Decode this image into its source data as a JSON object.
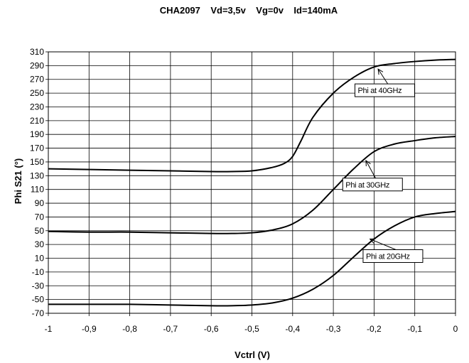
{
  "chart_data": {
    "type": "line",
    "title": "CHA2097    Vd=3,5v    Vg=0v    Id=140mA",
    "xlabel": "Vctrl (V)",
    "ylabel": "Phi S21 (°)",
    "xlim": [
      -1,
      0
    ],
    "ylim": [
      -70,
      310
    ],
    "x_ticks": [
      -1,
      -0.9,
      -0.8,
      -0.7,
      -0.6,
      -0.5,
      -0.4,
      -0.3,
      -0.2,
      -0.1,
      0
    ],
    "x_tick_labels": [
      "-1",
      "-0,9",
      "-0,8",
      "-0,7",
      "-0,6",
      "-0,5",
      "-0,4",
      "-0,3",
      "-0,2",
      "-0,1",
      "0"
    ],
    "y_ticks": [
      -70,
      -50,
      -30,
      -10,
      10,
      30,
      50,
      70,
      90,
      110,
      130,
      150,
      170,
      190,
      210,
      230,
      250,
      270,
      290,
      310
    ],
    "grid": true,
    "legend": "none",
    "series": [
      {
        "name": "Phi at 40GHz",
        "x": [
          -1,
          -0.9,
          -0.8,
          -0.7,
          -0.6,
          -0.55,
          -0.5,
          -0.45,
          -0.42,
          -0.4,
          -0.38,
          -0.35,
          -0.3,
          -0.25,
          -0.2,
          -0.15,
          -0.1,
          -0.05,
          0
        ],
        "y": [
          140,
          139,
          138,
          137,
          136,
          136,
          137,
          142,
          148,
          158,
          180,
          215,
          250,
          273,
          288,
          293,
          296,
          298,
          299
        ]
      },
      {
        "name": "Phi at 30GHz",
        "x": [
          -1,
          -0.9,
          -0.8,
          -0.7,
          -0.6,
          -0.55,
          -0.5,
          -0.45,
          -0.4,
          -0.35,
          -0.3,
          -0.25,
          -0.2,
          -0.15,
          -0.1,
          -0.05,
          0
        ],
        "y": [
          49,
          48,
          48,
          47,
          46,
          46,
          47,
          51,
          60,
          80,
          110,
          140,
          165,
          176,
          181,
          185,
          187
        ]
      },
      {
        "name": "Phi at 20GHz",
        "x": [
          -1,
          -0.9,
          -0.8,
          -0.7,
          -0.6,
          -0.55,
          -0.5,
          -0.45,
          -0.4,
          -0.35,
          -0.3,
          -0.25,
          -0.2,
          -0.15,
          -0.1,
          -0.05,
          0
        ],
        "y": [
          -57,
          -57,
          -57,
          -58,
          -59,
          -59,
          -58,
          -55,
          -48,
          -35,
          -15,
          12,
          38,
          57,
          70,
          75,
          78
        ]
      }
    ],
    "annotations": [
      {
        "text": "Phi at 40GHz",
        "series": 0,
        "target": [
          -0.19,
          285
        ],
        "box_anchor": [
          -0.24,
          250
        ]
      },
      {
        "text": "Phi at 30GHz",
        "series": 1,
        "target": [
          -0.22,
          152
        ],
        "box_anchor": [
          -0.27,
          113
        ]
      },
      {
        "text": "Phi at 20GHz",
        "series": 2,
        "target": [
          -0.21,
          38
        ],
        "box_anchor": [
          -0.22,
          9
        ]
      }
    ]
  }
}
